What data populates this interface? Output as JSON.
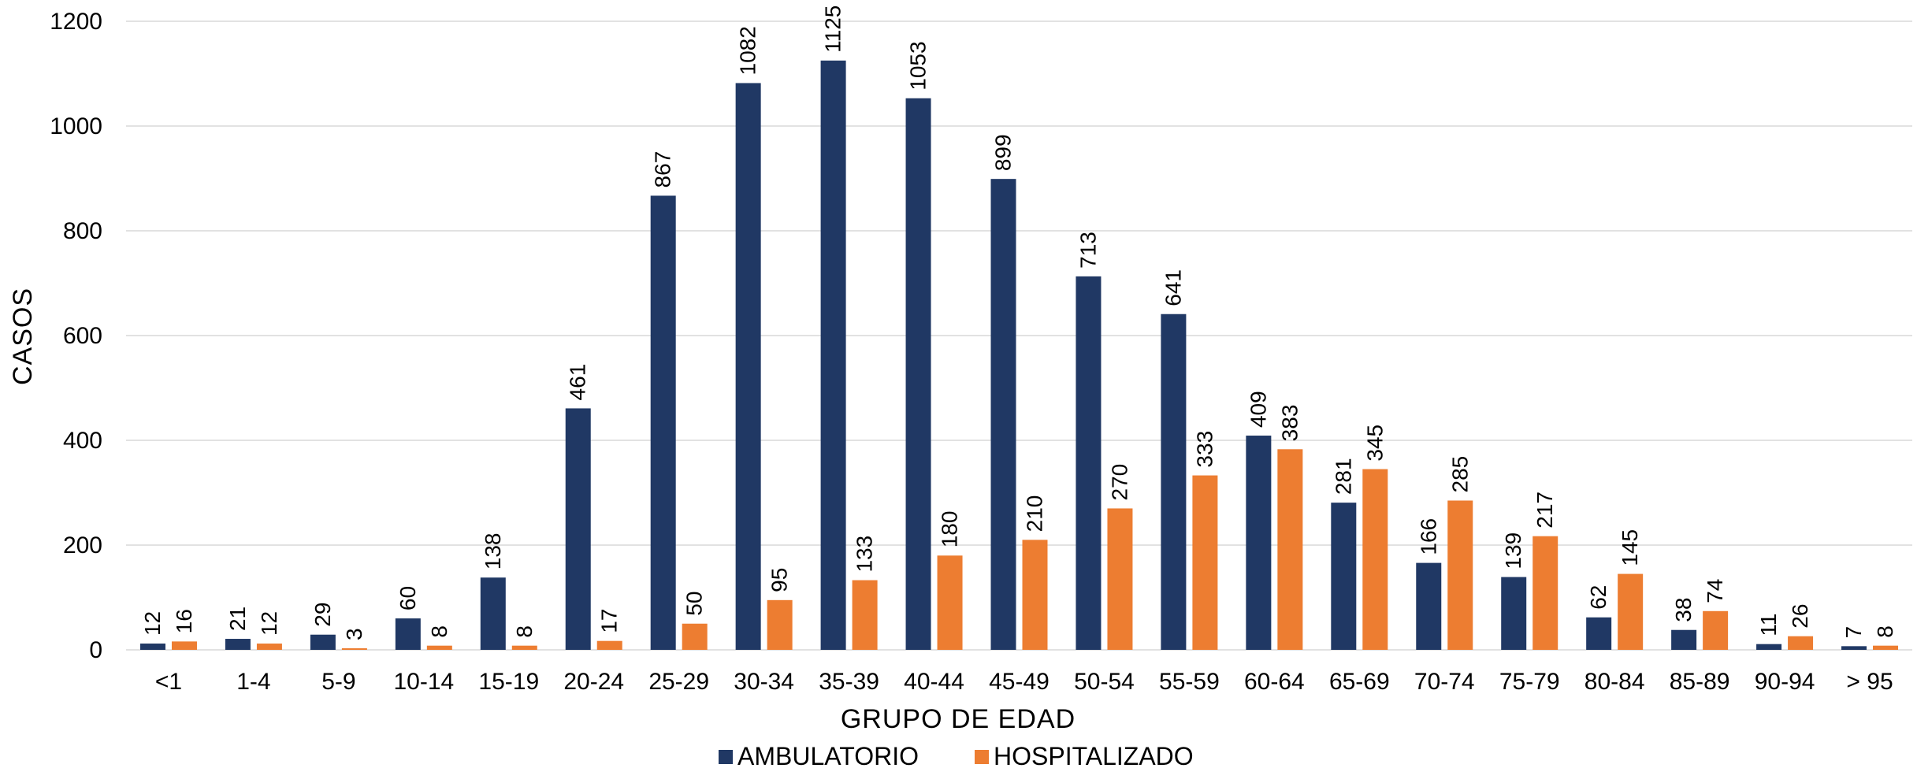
{
  "chart_data": {
    "type": "bar",
    "xlabel": "GRUPO DE EDAD",
    "ylabel": "CASOS",
    "ylim": [
      0,
      1200
    ],
    "y_ticks": [
      0,
      200,
      400,
      600,
      800,
      1000,
      1200
    ],
    "grid": true,
    "legend_position": "bottom",
    "categories": [
      "<1",
      "1-4",
      "5-9",
      "10-14",
      "15-19",
      "20-24",
      "25-29",
      "30-34",
      "35-39",
      "40-44",
      "45-49",
      "50-54",
      "55-59",
      "60-64",
      "65-69",
      "70-74",
      "75-79",
      "80-84",
      "85-89",
      "90-94",
      "> 95"
    ],
    "series": [
      {
        "name": "AMBULATORIO",
        "color": "#203864",
        "values": [
          12,
          21,
          29,
          60,
          138,
          461,
          867,
          1082,
          1125,
          1053,
          899,
          713,
          641,
          409,
          281,
          166,
          139,
          62,
          38,
          11,
          7
        ]
      },
      {
        "name": "HOSPITALIZADO",
        "color": "#ed7d31",
        "values": [
          16,
          12,
          3,
          8,
          8,
          17,
          50,
          95,
          133,
          180,
          210,
          270,
          333,
          383,
          345,
          285,
          217,
          145,
          74,
          26,
          8
        ]
      }
    ]
  }
}
